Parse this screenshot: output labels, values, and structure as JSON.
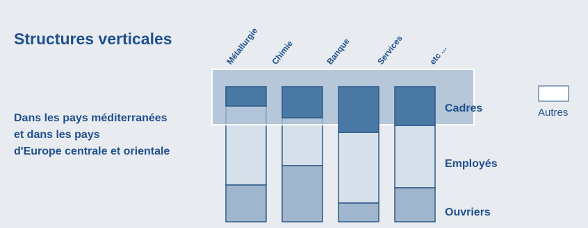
{
  "title": "Structures verticales",
  "description": [
    "Dans les pays méditerranées",
    "et dans les pays",
    "d'Europe centrale et orientale"
  ],
  "columns": [
    "Métallurgie",
    "Chimie",
    "Banque",
    "Services",
    "etc ..."
  ],
  "layers": [
    "Cadres",
    "Employés",
    "Ouvriers"
  ],
  "legend": "Autres"
}
